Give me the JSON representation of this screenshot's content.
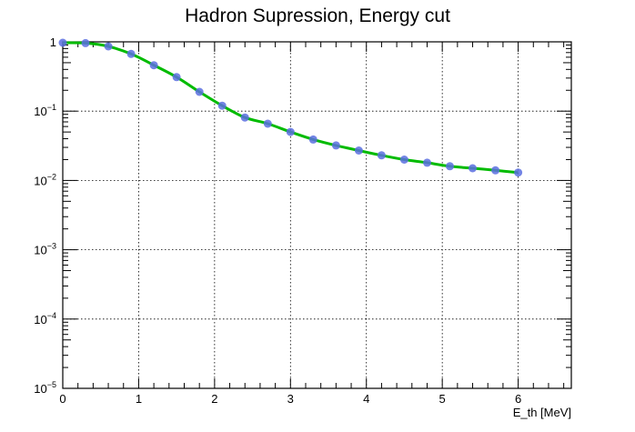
{
  "chart_data": {
    "type": "line",
    "title": "Hadron Supression, Energy cut",
    "xlabel": "E_th [MeV]",
    "ylabel": "",
    "xlim": [
      0,
      6.7
    ],
    "ylim": [
      1e-05,
      1
    ],
    "yscale": "log",
    "grid": true,
    "x_ticks": [
      0,
      1,
      2,
      3,
      4,
      5,
      6
    ],
    "x_tick_labels": [
      "0",
      "1",
      "2",
      "3",
      "4",
      "5",
      "6"
    ],
    "y_ticks": [
      {
        "value": 1,
        "base": "1",
        "exp": ""
      },
      {
        "value": 0.1,
        "base": "10",
        "exp": "−1"
      },
      {
        "value": 0.01,
        "base": "10",
        "exp": "−2"
      },
      {
        "value": 0.001,
        "base": "10",
        "exp": "−3"
      },
      {
        "value": 0.0001,
        "base": "10",
        "exp": "−4"
      },
      {
        "value": 1e-05,
        "base": "10",
        "exp": "−5"
      }
    ],
    "series": [
      {
        "line_color": "#00bb00",
        "marker_color": "#5a6ee0",
        "x": [
          0,
          0.3,
          0.6,
          0.9,
          1.2,
          1.5,
          1.8,
          2.1,
          2.4,
          2.7,
          3.0,
          3.3,
          3.6,
          3.9,
          4.2,
          4.5,
          4.8,
          5.1,
          5.4,
          5.7,
          6.0
        ],
        "y": [
          0.97,
          0.96,
          0.86,
          0.67,
          0.46,
          0.31,
          0.19,
          0.12,
          0.081,
          0.066,
          0.05,
          0.039,
          0.032,
          0.027,
          0.023,
          0.02,
          0.018,
          0.016,
          0.015,
          0.014,
          0.013
        ]
      }
    ]
  }
}
